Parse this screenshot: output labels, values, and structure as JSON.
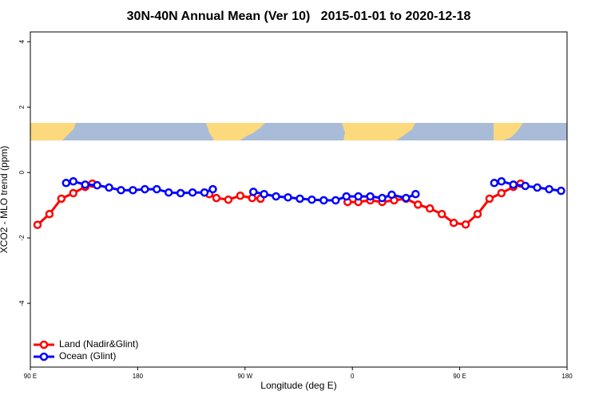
{
  "chart_data": {
    "type": "line",
    "title": "30N-40N Annual Mean (Ver 10)   2015-01-01 to 2020-12-18",
    "x_label": "Longitude (deg E)",
    "y_label": "XCO2 - MLO trend (ppm)",
    "xlim": [
      90,
      540
    ],
    "ylim": [
      -5.95,
      4.3
    ],
    "xticks": [
      {
        "value": 90,
        "label": "90 E"
      },
      180,
      {
        "value": 270,
        "label": "90 W"
      },
      {
        "value": 360,
        "label": "0"
      },
      {
        "value": 450,
        "label": "90 E"
      },
      {
        "value": 540,
        "label": "180"
      }
    ],
    "yticks": [
      -4,
      -2,
      0,
      2,
      4
    ],
    "legend": "bottomleft",
    "series": [
      {
        "name": "Land (Nadir&Glint)",
        "color": "#ff0000",
        "x": [
          96,
          106,
          116,
          126,
          136,
          142,
          null,
          240,
          246,
          256,
          266,
          276,
          283,
          null,
          356,
          365,
          375,
          385,
          395,
          405,
          415,
          425,
          435,
          445,
          455,
          465,
          475,
          485,
          495,
          501
        ],
        "values": [
          -1.6,
          -1.27,
          -0.8,
          -0.63,
          -0.44,
          -0.34,
          null,
          -0.66,
          -0.78,
          -0.83,
          -0.71,
          -0.78,
          -0.8,
          null,
          -0.9,
          -0.9,
          -0.85,
          -0.9,
          -0.85,
          -0.8,
          -0.98,
          -1.1,
          -1.27,
          -1.54,
          -1.59,
          -1.27,
          -0.8,
          -0.63,
          -0.44,
          -0.34
        ]
      },
      {
        "name": "Ocean (Glint)",
        "color": "#0000ff",
        "x": [
          120,
          126,
          136,
          146,
          156,
          166,
          176,
          186,
          196,
          206,
          216,
          226,
          236,
          243,
          null,
          277,
          286,
          296,
          306,
          316,
          326,
          336,
          346,
          355,
          365,
          375,
          385,
          393,
          405,
          413,
          null,
          479,
          485,
          495,
          505,
          515,
          525,
          535
        ],
        "values": [
          -0.32,
          -0.27,
          -0.37,
          -0.39,
          -0.46,
          -0.54,
          -0.54,
          -0.51,
          -0.51,
          -0.61,
          -0.63,
          -0.61,
          -0.61,
          -0.51,
          null,
          -0.59,
          -0.66,
          -0.73,
          -0.76,
          -0.8,
          -0.83,
          -0.85,
          -0.85,
          -0.73,
          -0.73,
          -0.73,
          -0.78,
          -0.68,
          -0.78,
          -0.66,
          null,
          -0.32,
          -0.27,
          -0.37,
          -0.41,
          -0.46,
          -0.51,
          -0.56
        ]
      }
    ]
  }
}
